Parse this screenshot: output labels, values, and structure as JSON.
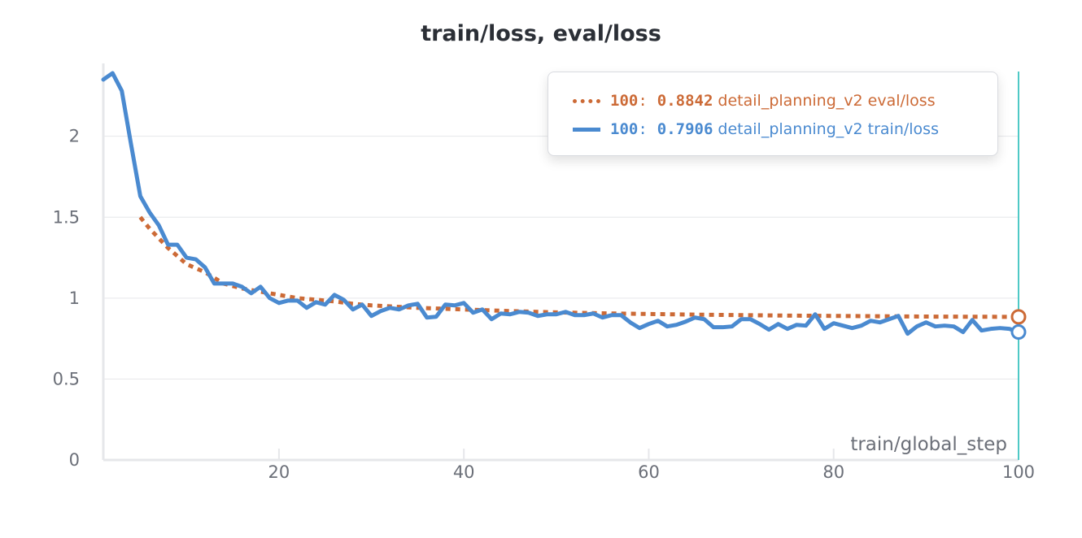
{
  "chart_data": {
    "type": "line",
    "title": "train/loss, eval/loss",
    "xlabel": "train/global_step",
    "ylabel": "",
    "xlim": [
      1,
      100
    ],
    "ylim": [
      0,
      2.4
    ],
    "x_ticks": [
      "20",
      "40",
      "60",
      "80",
      "100"
    ],
    "y_ticks": [
      "0",
      "0.5",
      "1",
      "1.5",
      "2"
    ],
    "grid": true,
    "legend_position": "top-right",
    "hover_step": 100,
    "series": [
      {
        "name": "detail_planning_v2 eval/loss",
        "color": "#cc6a36",
        "style": "dotted",
        "legend_step": "100",
        "legend_value": "0.8842",
        "x": [
          5,
          6,
          7,
          8,
          9,
          10,
          12,
          14,
          16,
          18,
          20,
          22,
          24,
          26,
          28,
          30,
          35,
          40,
          45,
          50,
          55,
          60,
          65,
          70,
          75,
          80,
          85,
          90,
          95,
          100
        ],
        "y": [
          1.5,
          1.43,
          1.37,
          1.31,
          1.26,
          1.21,
          1.16,
          1.09,
          1.06,
          1.04,
          1.02,
          1.0,
          0.99,
          0.98,
          0.965,
          0.955,
          0.94,
          0.93,
          0.92,
          0.912,
          0.906,
          0.902,
          0.898,
          0.895,
          0.892,
          0.89,
          0.888,
          0.886,
          0.885,
          0.8842
        ]
      },
      {
        "name": "detail_planning_v2 train/loss",
        "color": "#4a8ad0",
        "style": "solid",
        "legend_step": "100",
        "legend_value": "0.7906",
        "x": [
          1,
          2,
          3,
          4,
          5,
          6,
          7,
          8,
          9,
          10,
          11,
          12,
          13,
          14,
          15,
          16,
          17,
          18,
          19,
          20,
          21,
          22,
          23,
          24,
          25,
          26,
          27,
          28,
          29,
          30,
          31,
          32,
          33,
          34,
          35,
          36,
          37,
          38,
          39,
          40,
          41,
          42,
          43,
          44,
          45,
          46,
          47,
          48,
          49,
          50,
          51,
          52,
          53,
          54,
          55,
          56,
          57,
          58,
          59,
          60,
          61,
          62,
          63,
          64,
          65,
          66,
          67,
          68,
          69,
          70,
          71,
          72,
          73,
          74,
          75,
          76,
          77,
          78,
          79,
          80,
          81,
          82,
          83,
          84,
          85,
          86,
          87,
          88,
          89,
          90,
          91,
          92,
          93,
          94,
          95,
          96,
          97,
          98,
          99,
          100
        ],
        "y": [
          2.35,
          2.39,
          2.28,
          1.95,
          1.63,
          1.53,
          1.45,
          1.33,
          1.33,
          1.25,
          1.24,
          1.19,
          1.09,
          1.09,
          1.09,
          1.07,
          1.03,
          1.07,
          1.0,
          0.97,
          0.985,
          0.985,
          0.94,
          0.975,
          0.96,
          1.02,
          0.99,
          0.93,
          0.96,
          0.89,
          0.92,
          0.94,
          0.93,
          0.955,
          0.965,
          0.88,
          0.885,
          0.96,
          0.955,
          0.97,
          0.91,
          0.93,
          0.87,
          0.905,
          0.9,
          0.915,
          0.91,
          0.89,
          0.9,
          0.9,
          0.915,
          0.895,
          0.895,
          0.905,
          0.88,
          0.895,
          0.895,
          0.85,
          0.815,
          0.84,
          0.86,
          0.825,
          0.835,
          0.855,
          0.88,
          0.87,
          0.82,
          0.82,
          0.825,
          0.87,
          0.87,
          0.84,
          0.805,
          0.84,
          0.81,
          0.835,
          0.83,
          0.9,
          0.81,
          0.845,
          0.83,
          0.815,
          0.83,
          0.86,
          0.85,
          0.87,
          0.89,
          0.78,
          0.825,
          0.85,
          0.825,
          0.83,
          0.825,
          0.79,
          0.865,
          0.8,
          0.81,
          0.815,
          0.81,
          0.7906
        ]
      }
    ]
  }
}
